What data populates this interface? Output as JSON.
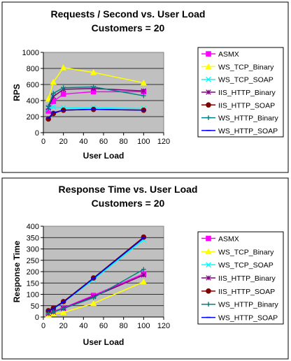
{
  "colors": {
    "ASMX": "#ff00ff",
    "WS_TCP_Binary": "#ffff00",
    "WS_TCP_SOAP": "#00ffff",
    "IIS_HTTP_Binary": "#800080",
    "IIS_HTTP_SOAP": "#800000",
    "WS_HTTP_Binary": "#008080",
    "WS_HTTP_SOAP": "#0000ff",
    "plot_bg": "#c0c0c0"
  },
  "chart_data": [
    {
      "type": "line",
      "title": "Requests / Second  vs.  User Load",
      "subtitle": "Customers = 20",
      "xlabel": "User Load",
      "ylabel": "RPS",
      "xlim": [
        0,
        120
      ],
      "ylim": [
        0,
        1000
      ],
      "xticks": [
        "0",
        "20",
        "40",
        "60",
        "80",
        "100",
        "120"
      ],
      "yticks": [
        "0",
        "200",
        "400",
        "600",
        "800",
        "1000"
      ],
      "grid": true,
      "legend": "right",
      "series": [
        {
          "name": "ASMX",
          "x": [
            5,
            10,
            20,
            50,
            100
          ],
          "y": [
            270,
            390,
            480,
            510,
            510
          ]
        },
        {
          "name": "WS_TCP_Binary",
          "x": [
            5,
            10,
            20,
            50,
            100
          ],
          "y": [
            420,
            630,
            810,
            750,
            620
          ]
        },
        {
          "name": "WS_TCP_SOAP",
          "x": [
            5,
            10,
            20,
            50,
            100
          ],
          "y": [
            300,
            320,
            310,
            310,
            300
          ]
        },
        {
          "name": "IIS_HTTP_Binary",
          "x": [
            5,
            10,
            20,
            50,
            100
          ],
          "y": [
            310,
            450,
            540,
            550,
            520
          ]
        },
        {
          "name": "IIS_HTTP_SOAP",
          "x": [
            5,
            10,
            20,
            50,
            100
          ],
          "y": [
            170,
            240,
            280,
            290,
            280
          ]
        },
        {
          "name": "WS_HTTP_Binary",
          "x": [
            5,
            10,
            20,
            50,
            100
          ],
          "y": [
            330,
            490,
            560,
            570,
            460
          ]
        },
        {
          "name": "WS_HTTP_SOAP",
          "x": [
            5,
            10,
            20,
            50,
            100
          ],
          "y": [
            180,
            250,
            280,
            290,
            280
          ]
        }
      ]
    },
    {
      "type": "line",
      "title": "Response Time  vs.  User Load",
      "subtitle": "Customers = 20",
      "xlabel": "User Load",
      "ylabel": "Response Time",
      "xlim": [
        0,
        120
      ],
      "ylim": [
        0,
        400
      ],
      "xticks": [
        "0",
        "20",
        "40",
        "60",
        "80",
        "100",
        "120"
      ],
      "yticks": [
        "0",
        "50",
        "100",
        "150",
        "200",
        "250",
        "300",
        "350",
        "400"
      ],
      "grid": true,
      "legend": "right",
      "series": [
        {
          "name": "ASMX",
          "x": [
            5,
            10,
            20,
            50,
            100
          ],
          "y": [
            18,
            25,
            40,
            95,
            190
          ]
        },
        {
          "name": "WS_TCP_Binary",
          "x": [
            5,
            10,
            20,
            50,
            100
          ],
          "y": [
            10,
            15,
            20,
            60,
            155
          ]
        },
        {
          "name": "WS_TCP_SOAP",
          "x": [
            5,
            10,
            20,
            50,
            100
          ],
          "y": [
            25,
            35,
            65,
            165,
            340
          ]
        },
        {
          "name": "IIS_HTTP_Binary",
          "x": [
            5,
            10,
            20,
            50,
            100
          ],
          "y": [
            15,
            22,
            38,
            90,
            185
          ]
        },
        {
          "name": "IIS_HTTP_SOAP",
          "x": [
            5,
            10,
            20,
            50,
            100
          ],
          "y": [
            28,
            40,
            68,
            172,
            352
          ]
        },
        {
          "name": "WS_HTTP_Binary",
          "x": [
            5,
            10,
            20,
            50,
            100
          ],
          "y": [
            16,
            22,
            37,
            85,
            210
          ]
        },
        {
          "name": "WS_HTTP_SOAP",
          "x": [
            5,
            10,
            20,
            50,
            100
          ],
          "y": [
            27,
            38,
            65,
            170,
            348
          ]
        }
      ]
    }
  ]
}
